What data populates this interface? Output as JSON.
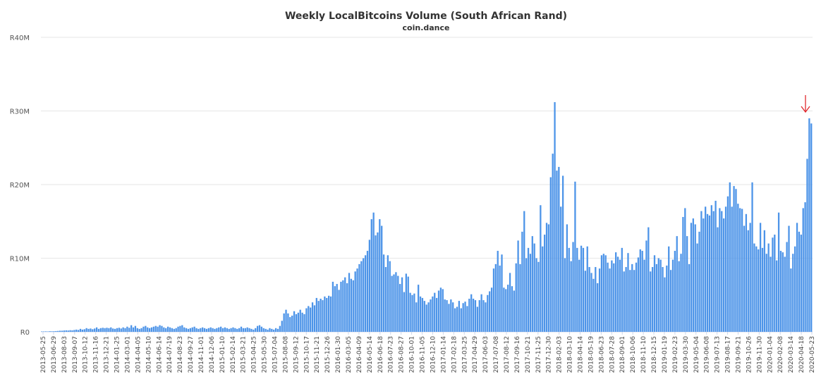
{
  "chart_data": {
    "type": "bar",
    "title": "Weekly LocalBitcoins Volume (South African Rand)",
    "subtitle": "coin.dance",
    "ylim": [
      0,
      40000000
    ],
    "yticks": [
      {
        "value": 0,
        "label": "R0"
      },
      {
        "value": 10000000,
        "label": "R10M"
      },
      {
        "value": 20000000,
        "label": "R20M"
      },
      {
        "value": 30000000,
        "label": "R30M"
      },
      {
        "value": 40000000,
        "label": "R40M"
      }
    ],
    "grid": true,
    "legend": "none",
    "annotation": {
      "type": "arrow",
      "color": "#e0282e",
      "target": "2020-05-23"
    },
    "xtick_labels": [
      "2013-05-25",
      "2013-06-29",
      "2013-08-03",
      "2013-09-07",
      "2013-10-12",
      "2013-11-16",
      "2013-12-21",
      "2014-01-25",
      "2014-03-01",
      "2014-04-05",
      "2014-05-10",
      "2014-06-14",
      "2014-07-19",
      "2014-08-23",
      "2014-09-27",
      "2014-11-01",
      "2014-12-06",
      "2015-01-10",
      "2015-02-14",
      "2015-03-21",
      "2015-04-25",
      "2015-05-30",
      "2015-07-04",
      "2015-08-08",
      "2015-09-12",
      "2015-10-17",
      "2015-11-21",
      "2015-12-26",
      "2016-01-30",
      "2016-03-05",
      "2016-04-09",
      "2016-05-14",
      "2016-06-18",
      "2016-07-23",
      "2016-08-27",
      "2016-10-01",
      "2016-11-05",
      "2016-12-10",
      "2017-01-14",
      "2017-02-18",
      "2017-03-25",
      "2017-04-29",
      "2017-06-03",
      "2017-07-08",
      "2017-08-12",
      "2017-09-16",
      "2017-10-21",
      "2017-11-25",
      "2017-12-30",
      "2018-02-03",
      "2018-03-10",
      "2018-04-14",
      "2018-05-19",
      "2018-06-23",
      "2018-07-28",
      "2018-09-01",
      "2018-10-06",
      "2018-11-10",
      "2018-12-15",
      "2019-01-19",
      "2019-02-23",
      "2019-03-30",
      "2019-05-04",
      "2019-06-08",
      "2019-07-13",
      "2019-08-17",
      "2019-09-21",
      "2019-10-26",
      "2019-11-30",
      "2020-01-04",
      "2020-02-08",
      "2020-03-14",
      "2020-04-18",
      "2020-05-23"
    ],
    "values_millions": [
      0.05,
      0.05,
      0.06,
      0.05,
      0.08,
      0.07,
      0.08,
      0.1,
      0.12,
      0.15,
      0.15,
      0.18,
      0.2,
      0.18,
      0.22,
      0.2,
      0.25,
      0.3,
      0.25,
      0.4,
      0.3,
      0.35,
      0.5,
      0.4,
      0.45,
      0.35,
      0.45,
      0.6,
      0.4,
      0.5,
      0.55,
      0.5,
      0.55,
      0.5,
      0.6,
      0.45,
      0.4,
      0.5,
      0.55,
      0.45,
      0.6,
      0.5,
      0.7,
      0.55,
      0.9,
      0.6,
      0.8,
      0.5,
      0.4,
      0.5,
      0.7,
      0.8,
      0.6,
      0.5,
      0.6,
      0.7,
      0.8,
      0.7,
      0.9,
      0.8,
      0.6,
      0.5,
      0.7,
      0.6,
      0.5,
      0.4,
      0.5,
      0.7,
      0.8,
      0.9,
      0.6,
      0.5,
      0.4,
      0.5,
      0.6,
      0.7,
      0.5,
      0.4,
      0.5,
      0.6,
      0.5,
      0.4,
      0.5,
      0.6,
      0.5,
      0.4,
      0.5,
      0.6,
      0.7,
      0.5,
      0.6,
      0.5,
      0.4,
      0.5,
      0.6,
      0.5,
      0.4,
      0.5,
      0.7,
      0.5,
      0.5,
      0.6,
      0.5,
      0.4,
      0.3,
      0.5,
      0.8,
      0.9,
      0.7,
      0.5,
      0.4,
      0.3,
      0.5,
      0.4,
      0.3,
      0.5,
      0.4,
      0.8,
      1.5,
      2.5,
      3.0,
      2.5,
      2.0,
      2.2,
      2.8,
      2.4,
      2.6,
      3.0,
      2.6,
      2.4,
      3.2,
      3.5,
      3.3,
      4.0,
      3.6,
      4.6,
      4.2,
      4.5,
      4.3,
      4.8,
      4.6,
      4.9,
      4.8,
      6.8,
      6.2,
      6.5,
      5.7,
      6.8,
      7.0,
      7.4,
      6.6,
      8.0,
      7.2,
      7.0,
      8.2,
      8.6,
      9.2,
      9.6,
      10.0,
      10.4,
      11.0,
      12.5,
      15.3,
      16.2,
      13.1,
      13.5,
      15.3,
      14.4,
      10.5,
      8.8,
      10.4,
      9.6,
      7.6,
      7.8,
      8.1,
      7.6,
      6.5,
      7.4,
      5.4,
      7.9,
      7.5,
      5.3,
      5.0,
      5.2,
      4.0,
      6.4,
      4.8,
      4.6,
      4.2,
      3.7,
      4.0,
      4.4,
      4.8,
      5.3,
      4.6,
      5.6,
      6.0,
      5.8,
      4.4,
      4.3,
      3.8,
      4.4,
      4.0,
      3.2,
      3.4,
      4.2,
      3.2,
      3.9,
      4.1,
      3.5,
      4.5,
      5.1,
      4.5,
      4.3,
      3.4,
      4.3,
      5.1,
      4.3,
      4.0,
      5.0,
      5.5,
      6.0,
      8.6,
      9.2,
      11.0,
      9.0,
      10.5,
      6.0,
      5.8,
      6.4,
      8.0,
      6.2,
      5.6,
      9.3,
      12.4,
      9.2,
      13.6,
      16.4,
      10.0,
      11.4,
      10.6,
      13.0,
      12.0,
      10.0,
      9.5,
      17.2,
      11.6,
      13.2,
      14.8,
      14.6,
      21.0,
      24.2,
      31.2,
      21.9,
      22.4,
      17.0,
      21.2,
      10.0,
      14.6,
      11.4,
      9.6,
      12.2,
      20.4,
      11.4,
      9.8,
      11.7,
      11.4,
      8.3,
      11.6,
      8.8,
      8.0,
      7.2,
      8.8,
      6.6,
      8.6,
      10.4,
      10.6,
      10.4,
      9.4,
      8.6,
      9.7,
      9.3,
      10.8,
      10.2,
      9.8,
      11.4,
      8.2,
      8.8,
      10.7,
      8.4,
      9.2,
      8.4,
      9.4,
      10.1,
      11.2,
      11.0,
      9.8,
      12.4,
      14.2,
      8.2,
      8.8,
      10.4,
      9.2,
      10.0,
      9.8,
      8.8,
      7.4,
      9.0,
      11.6,
      8.4,
      9.8,
      11.0,
      13.0,
      9.6,
      10.6,
      15.6,
      16.8,
      13.0,
      9.2,
      14.8,
      15.4,
      14.6,
      12.0,
      13.6,
      16.4,
      15.4,
      17.0,
      16.0,
      15.8,
      17.2,
      16.4,
      17.8,
      14.2,
      16.8,
      16.4,
      15.4,
      17.0,
      18.4,
      20.3,
      17.0,
      19.8,
      19.4,
      17.4,
      16.8,
      16.7,
      14.4,
      16.0,
      13.8,
      14.8,
      20.3,
      12.0,
      11.6,
      11.2,
      14.8,
      11.4,
      13.8,
      10.6,
      12.0,
      10.2,
      12.8,
      13.2,
      9.7,
      16.2,
      11.0,
      10.8,
      10.2,
      12.2,
      14.4,
      8.6,
      10.6,
      11.6,
      14.8,
      13.6,
      13.2,
      16.8,
      17.6,
      23.5,
      29.0,
      28.3
    ]
  }
}
